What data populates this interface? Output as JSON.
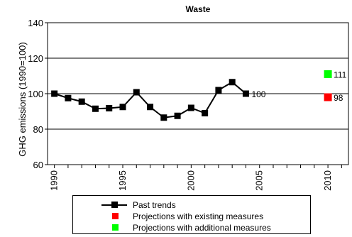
{
  "chart_data": {
    "type": "line",
    "title": "Waste",
    "ylabel": "GHG emissions (1990=100)",
    "xlabel": "",
    "ylim": [
      60,
      140
    ],
    "xlim": [
      1989.5,
      2011.5
    ],
    "y_ticks": [
      "60",
      "80",
      "100",
      "120",
      "140"
    ],
    "x_ticks": [
      "1990",
      "1995",
      "2000",
      "2005",
      "2010"
    ],
    "grid": "horizontal",
    "legend_position": "bottom",
    "series": [
      {
        "name": "Past trends",
        "color": "#000000",
        "marker": "square",
        "x": [
          1990,
          1991,
          1992,
          1993,
          1994,
          1995,
          1996,
          1997,
          1998,
          1999,
          2000,
          2001,
          2002,
          2003,
          2004
        ],
        "y": [
          100,
          97.5,
          95.5,
          91.5,
          91.8,
          92.5,
          100.8,
          92.5,
          86.5,
          87.5,
          92.0,
          89.0,
          102.0,
          106.5,
          100.0
        ],
        "end_label": "100"
      },
      {
        "name": "Projections with existing measures",
        "color": "#ff0000",
        "marker": "square",
        "x": [
          2010
        ],
        "y": [
          98
        ],
        "end_label": "98"
      },
      {
        "name": "Projections with additional measures",
        "color": "#00ff00",
        "marker": "square",
        "x": [
          2010
        ],
        "y": [
          111
        ],
        "end_label": "111"
      }
    ]
  }
}
